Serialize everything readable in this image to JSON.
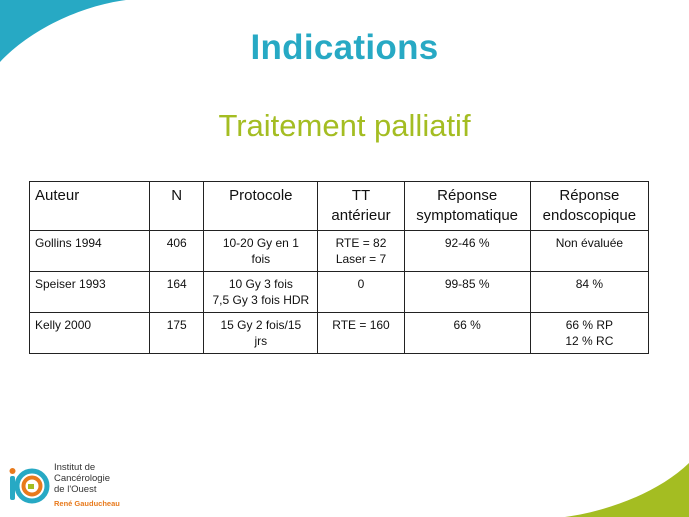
{
  "slide": {
    "title": "Indications",
    "subtitle": "Traitement palliatif"
  },
  "table": {
    "headers": {
      "auteur": "Auteur",
      "n": "N",
      "protocole": "Protocole",
      "tt": [
        "TT",
        "antérieur"
      ],
      "symptomatique": [
        "Réponse",
        "symptomatique"
      ],
      "endoscopique": [
        "Réponse",
        "endoscopique"
      ]
    },
    "rows": [
      {
        "auteur": "Gollins 1994",
        "n": "406",
        "protocole": [
          "10-20 Gy en 1",
          "fois"
        ],
        "tt": [
          "RTE = 82",
          "Laser = 7"
        ],
        "symptomatique": "92-46 %",
        "endoscopique": [
          "Non évaluée"
        ]
      },
      {
        "auteur": "Speiser 1993",
        "n": "164",
        "protocole": [
          "10 Gy 3 fois",
          "7,5 Gy 3 fois HDR"
        ],
        "tt": [
          "0"
        ],
        "symptomatique": "99-85 %",
        "endoscopique": [
          "84 %"
        ]
      },
      {
        "auteur": "Kelly 2000",
        "n": "175",
        "protocole": [
          "15 Gy 2 fois/15",
          "jrs"
        ],
        "tt": [
          "RTE = 160"
        ],
        "symptomatique": "66 %",
        "endoscopique": [
          "66 % RP",
          "12 % RC"
        ]
      }
    ]
  },
  "logo": {
    "lines": [
      "Institut de",
      "Cancérologie",
      "de l'Ouest"
    ],
    "sub": "René Gauducheau",
    "colors": {
      "teal": "#27a9c4",
      "orange": "#e87a1c",
      "green": "#a4bd22"
    }
  }
}
